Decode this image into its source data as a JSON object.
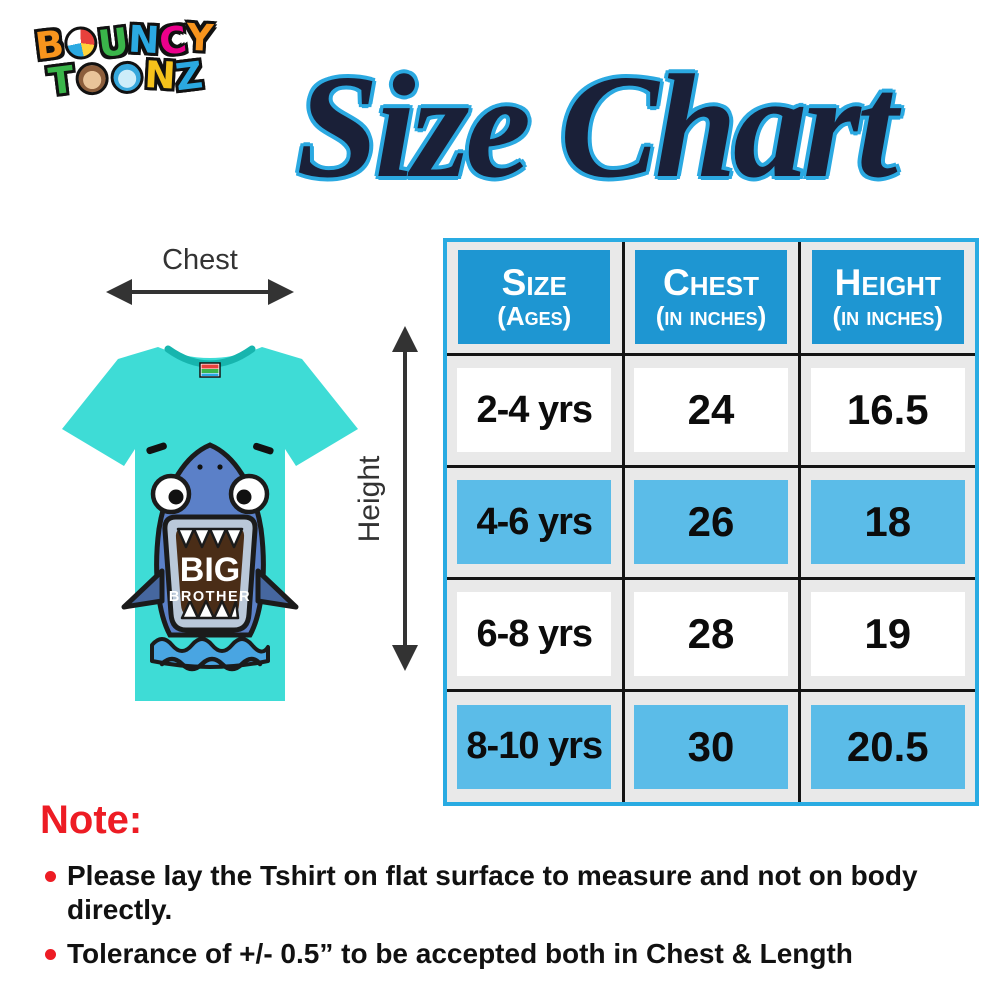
{
  "brand": {
    "line1": [
      {
        "ch": "B",
        "color": "#F7941D"
      },
      {
        "ch": "O",
        "shape": "ball"
      },
      {
        "ch": "U",
        "color": "#3AB54A"
      },
      {
        "ch": "N",
        "color": "#2BA9E1"
      },
      {
        "ch": "C",
        "color": "#EC008C"
      },
      {
        "ch": "Y",
        "color": "#F7941D"
      }
    ],
    "line2": [
      {
        "ch": "T",
        "color": "#3AB54A"
      },
      {
        "ch": "O",
        "shape": "monkey"
      },
      {
        "ch": "O",
        "shape": "hippo"
      },
      {
        "ch": "N",
        "color": "#F5C21B"
      },
      {
        "ch": "Z",
        "color": "#2BA9E1"
      }
    ]
  },
  "title": {
    "text": "Size Chart"
  },
  "indicators": {
    "chest": "Chest",
    "height": "Height"
  },
  "shirt": {
    "print_line1": "BIG",
    "print_line2": "BROTHER"
  },
  "table": {
    "headers": [
      {
        "line1": "Size",
        "line2": "(Ages)"
      },
      {
        "line1": "Chest",
        "line2": "(in inches)"
      },
      {
        "line1": "Height",
        "line2": "(in inches)"
      }
    ],
    "rows": [
      {
        "size": "2-4 yrs",
        "chest": "24",
        "height": "16.5",
        "highlight": false
      },
      {
        "size": "4-6 yrs",
        "chest": "26",
        "height": "18",
        "highlight": true
      },
      {
        "size": "6-8 yrs",
        "chest": "28",
        "height": "19",
        "highlight": false
      },
      {
        "size": "8-10 yrs",
        "chest": "30",
        "height": "20.5",
        "highlight": true
      }
    ]
  },
  "note": {
    "heading": "Note:",
    "bullets": [
      "Please lay the Tshirt on flat surface to measure and not on body directly.",
      "Tolerance of +/- 0.5” to be accepted both in Chest & Length"
    ]
  },
  "colors": {
    "accent-blue": "#29ABE2",
    "header-blue": "#1E96D2",
    "row-blue": "#5BBCE8",
    "cell-gray": "#E9E9E9",
    "grid-black": "#141414",
    "note-red": "#ED1C24",
    "shirt-teal": "#3EDCD6",
    "title-fill": "#1A2038",
    "title-outline": "#2BA9E1",
    "shark-blue": "#5B80C8"
  },
  "chart_data": {
    "type": "table",
    "title": "Size Chart",
    "columns": [
      "Size (Ages)",
      "Chest (in inches)",
      "Height (in inches)"
    ],
    "rows": [
      [
        "2-4 yrs",
        24,
        16.5
      ],
      [
        "4-6 yrs",
        26,
        18
      ],
      [
        "6-8 yrs",
        28,
        19
      ],
      [
        "8-10 yrs",
        30,
        20.5
      ]
    ],
    "units": "inches",
    "highlighted_rows": [
      "4-6 yrs",
      "8-10 yrs"
    ]
  }
}
